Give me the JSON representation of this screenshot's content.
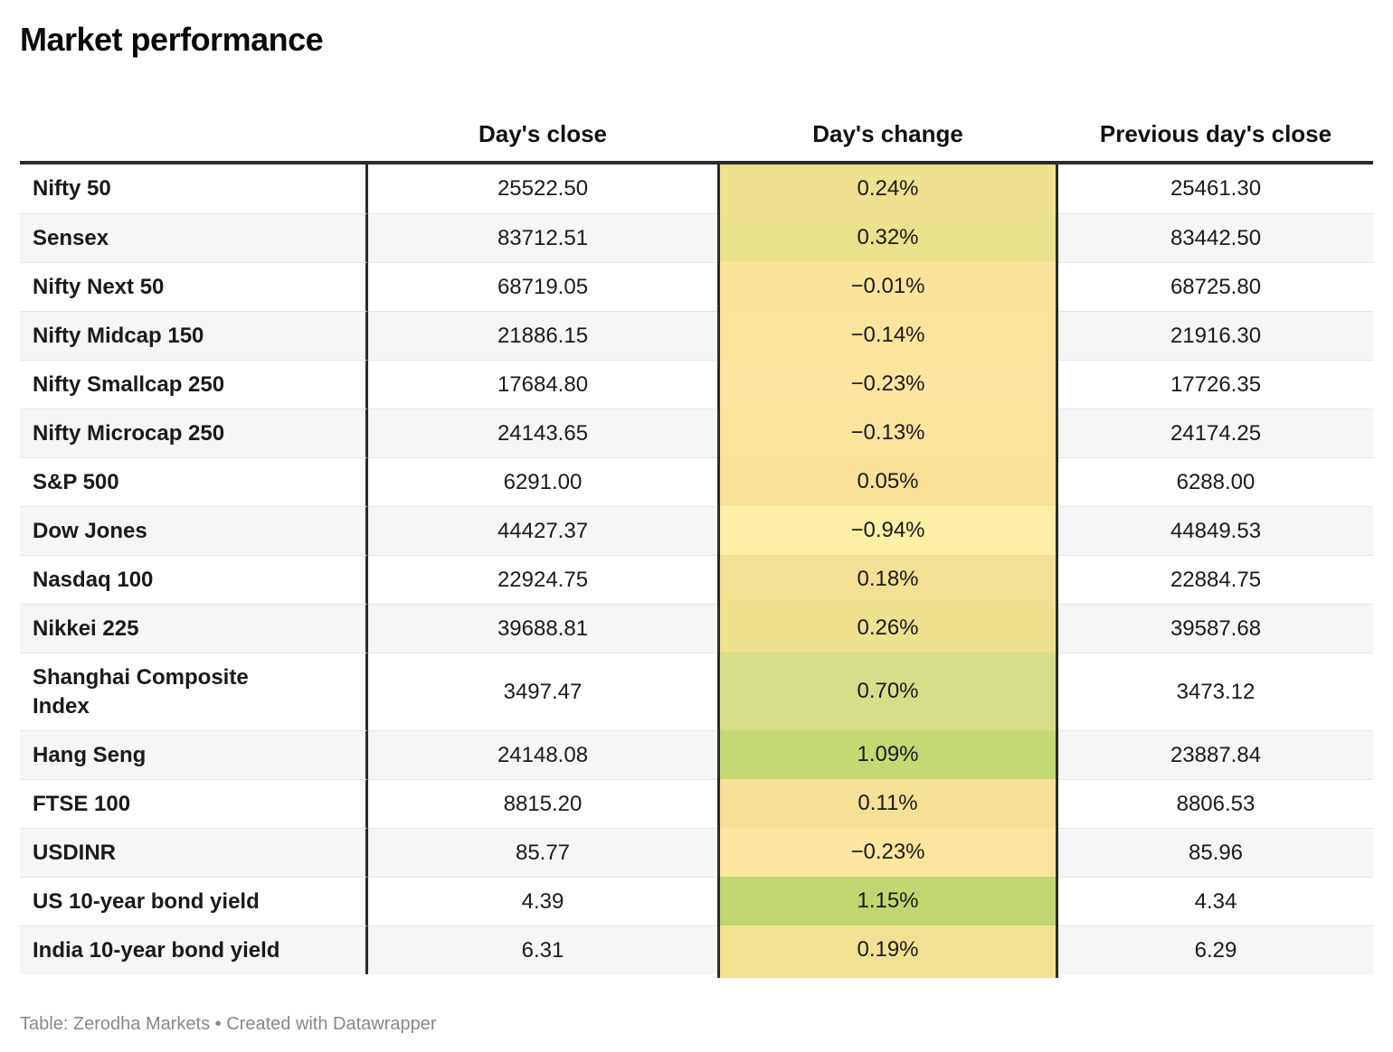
{
  "title": "Market performance",
  "header": {
    "close": "Day's close",
    "change": "Day's change",
    "prev": "Previous day's close"
  },
  "footer": {
    "text": "Table: Zerodha Markets • Created with Datawrapper"
  },
  "colors": {
    "header_rule": "#2b2b2b",
    "column_divider": "#2b2b2b",
    "row_stripe": "#f6f6f6",
    "row_separator": "#e6e6e6",
    "footer_text": "#888888",
    "scale_negative_low": "#fdf0a6",
    "scale_neutral": "#fae197",
    "scale_positive_high": "#c0d670"
  },
  "table": {
    "rows": [
      {
        "label": "Nifty 50",
        "close": "25522.50",
        "change": "0.24%",
        "prev": "25461.30",
        "change_color": "#eee18f"
      },
      {
        "label": "Sensex",
        "close": "83712.51",
        "change": "0.32%",
        "prev": "83442.50",
        "change_color": "#ebe08b"
      },
      {
        "label": "Nifty Next 50",
        "close": "68719.05",
        "change": "−0.01%",
        "prev": "68725.80",
        "change_color": "#fce39b"
      },
      {
        "label": "Nifty Midcap 150",
        "close": "21886.15",
        "change": "−0.14%",
        "prev": "21916.30",
        "change_color": "#fce49d"
      },
      {
        "label": "Nifty Smallcap 250",
        "close": "17684.80",
        "change": "−0.23%",
        "prev": "17726.35",
        "change_color": "#fde5a0"
      },
      {
        "label": "Nifty Microcap 250",
        "close": "24143.65",
        "change": "−0.13%",
        "prev": "24174.25",
        "change_color": "#fce49d"
      },
      {
        "label": "S&P 500",
        "close": "6291.00",
        "change": "0.05%",
        "prev": "6288.00",
        "change_color": "#fae197"
      },
      {
        "label": "Dow Jones",
        "close": "44427.37",
        "change": "−0.94%",
        "prev": "44849.53",
        "change_color": "#fdf0a6"
      },
      {
        "label": "Nasdaq 100",
        "close": "22924.75",
        "change": "0.18%",
        "prev": "22884.75",
        "change_color": "#f3e094"
      },
      {
        "label": "Nikkei 225",
        "close": "39688.81",
        "change": "0.26%",
        "prev": "39587.68",
        "change_color": "#ede18e"
      },
      {
        "label": "Shanghai Composite\nIndex",
        "close": "3497.47",
        "change": "0.70%",
        "prev": "3473.12",
        "change_color": "#d7de8a"
      },
      {
        "label": "Hang Seng",
        "close": "24148.08",
        "change": "1.09%",
        "prev": "23887.84",
        "change_color": "#c4d974"
      },
      {
        "label": "FTSE 100",
        "close": "8815.20",
        "change": "0.11%",
        "prev": "8806.53",
        "change_color": "#f6e096"
      },
      {
        "label": "USDINR",
        "close": "85.77",
        "change": "−0.23%",
        "prev": "85.96",
        "change_color": "#fde5a0"
      },
      {
        "label": "US 10-year bond yield",
        "close": "4.39",
        "change": "1.15%",
        "prev": "4.34",
        "change_color": "#c0d670"
      },
      {
        "label": "India 10-year bond yield",
        "close": "6.31",
        "change": "0.19%",
        "prev": "6.29",
        "change_color": "#f2e093"
      }
    ]
  },
  "chart_data": {
    "type": "table",
    "title": "Market performance",
    "columns": [
      "Day's close",
      "Day's change (%)",
      "Previous day's close"
    ],
    "rows": [
      [
        "Nifty 50",
        25522.5,
        0.24,
        25461.3
      ],
      [
        "Sensex",
        83712.51,
        0.32,
        83442.5
      ],
      [
        "Nifty Next 50",
        68719.05,
        -0.01,
        68725.8
      ],
      [
        "Nifty Midcap 150",
        21886.15,
        -0.14,
        21916.3
      ],
      [
        "Nifty Smallcap 250",
        17684.8,
        -0.23,
        17726.35
      ],
      [
        "Nifty Microcap 250",
        24143.65,
        -0.13,
        24174.25
      ],
      [
        "S&P 500",
        6291.0,
        0.05,
        6288.0
      ],
      [
        "Dow Jones",
        44427.37,
        -0.94,
        44849.53
      ],
      [
        "Nasdaq 100",
        22924.75,
        0.18,
        22884.75
      ],
      [
        "Nikkei 225",
        39688.81,
        0.26,
        39587.68
      ],
      [
        "Shanghai Composite Index",
        3497.47,
        0.7,
        3473.12
      ],
      [
        "Hang Seng",
        24148.08,
        1.09,
        23887.84
      ],
      [
        "FTSE 100",
        8815.2,
        0.11,
        8806.53
      ],
      [
        "USDINR",
        85.77,
        -0.23,
        85.96
      ],
      [
        "US 10-year bond yield",
        4.39,
        1.15,
        4.34
      ],
      [
        "India 10-year bond yield",
        6.31,
        0.19,
        6.29
      ]
    ],
    "heatmap_column": "Day's change (%)",
    "heatmap_scale": {
      "low": "#fdf0a6",
      "mid": "#fae197",
      "high": "#c0d670"
    }
  }
}
